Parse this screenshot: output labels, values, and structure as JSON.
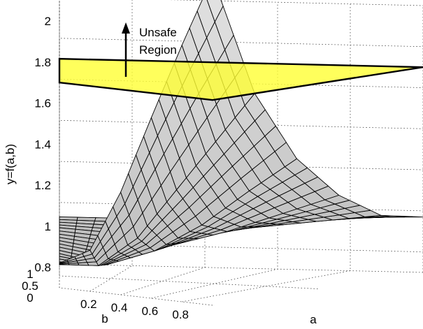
{
  "chart_data": {
    "type": "surface",
    "title": "",
    "xlabel": "a",
    "ylabel": "b",
    "zlabel": "y=f(a,b)",
    "xlim": [
      0,
      1
    ],
    "ylim": [
      0,
      1
    ],
    "zlim": [
      0.7,
      2
    ],
    "x_ticks": [
      "0.2",
      "0.4",
      "0.6",
      "0.8"
    ],
    "y_ticks": [
      "0",
      "0.5",
      "1"
    ],
    "z_ticks": [
      "0.8",
      "1",
      "1.2",
      "1.4",
      "1.6",
      "1.8",
      "2"
    ],
    "grid": true,
    "surface": {
      "name": "",
      "a": [
        0.0,
        0.2,
        0.4,
        0.6,
        0.8,
        1.0
      ],
      "b": [
        0.0,
        0.2,
        0.4,
        0.6,
        0.8,
        1.0
      ],
      "z": [
        [
          0.82,
          0.9,
          1.2,
          1.58,
          1.95,
          2.3
        ],
        [
          0.79,
          0.8,
          0.95,
          1.2,
          1.45,
          1.7
        ],
        [
          0.82,
          0.78,
          0.86,
          1.0,
          1.18,
          1.35
        ],
        [
          0.86,
          0.82,
          0.86,
          0.94,
          1.04,
          1.14
        ],
        [
          0.9,
          0.88,
          0.9,
          0.93,
          0.97,
          1.01
        ],
        [
          0.93,
          0.93,
          0.94,
          0.95,
          0.96,
          0.97
        ]
      ]
    },
    "threshold_plane": {
      "z": 1.7,
      "color": "#ffff33"
    },
    "annotations": [
      {
        "text_line1": "Unsafe",
        "text_line2": "Region",
        "arrow": "up"
      }
    ]
  }
}
